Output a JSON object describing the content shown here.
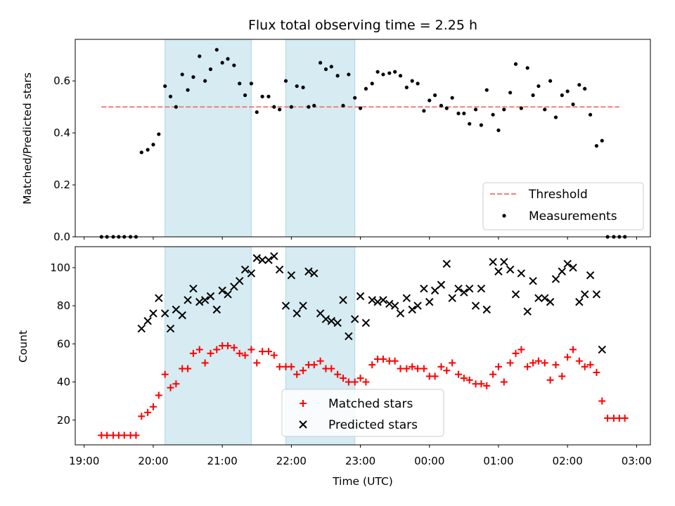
{
  "chart_data": [
    {
      "type": "scatter",
      "title": "Flux total observing time = 2.25 h",
      "xlabel": "",
      "ylabel": "Matched/Predicted stars",
      "ylim": [
        0,
        0.76
      ],
      "y_ticks": [
        0.0,
        0.2,
        0.4,
        0.6
      ],
      "y_tick_labels": [
        "0.0",
        "0.2",
        "0.4",
        "0.6"
      ],
      "xlim_hours": [
        18.87,
        27.2
      ],
      "shaded_intervals_hours": [
        [
          20.17,
          21.42
        ],
        [
          21.92,
          22.92
        ]
      ],
      "shade_color": "#add8e6",
      "threshold": {
        "name": "Threshold",
        "value": 0.5,
        "x_range_hours": [
          19.25,
          26.75
        ],
        "color": "#f08080"
      },
      "legend": [
        {
          "label": "Threshold",
          "marker": "dashed-line",
          "color": "#f08080"
        },
        {
          "label": "Measurements",
          "marker": "dot",
          "color": "#000000"
        }
      ],
      "legend_position": "lower-right",
      "series": [
        {
          "name": "Measurements",
          "marker": "dot",
          "color": "#000000",
          "x_hours": [
            19.25,
            19.33,
            19.42,
            19.5,
            19.58,
            19.67,
            19.75,
            19.83,
            19.92,
            20.0,
            20.08,
            20.17,
            20.25,
            20.33,
            20.42,
            20.5,
            20.58,
            20.67,
            20.75,
            20.83,
            20.92,
            21.0,
            21.08,
            21.17,
            21.25,
            21.33,
            21.42,
            21.5,
            21.58,
            21.67,
            21.75,
            21.83,
            21.92,
            22.0,
            22.08,
            22.17,
            22.25,
            22.33,
            22.42,
            22.5,
            22.58,
            22.67,
            22.75,
            22.83,
            22.92,
            23.0,
            23.08,
            23.17,
            23.25,
            23.33,
            23.42,
            23.5,
            23.58,
            23.67,
            23.75,
            23.83,
            23.92,
            24.0,
            24.08,
            24.17,
            24.25,
            24.33,
            24.42,
            24.5,
            24.58,
            24.67,
            24.75,
            24.83,
            24.92,
            25.0,
            25.08,
            25.17,
            25.25,
            25.33,
            25.42,
            25.5,
            25.58,
            25.67,
            25.75,
            25.83,
            25.92,
            26.0,
            26.08,
            26.17,
            26.25,
            26.33,
            26.42,
            26.5,
            26.58,
            26.67,
            26.75,
            26.83
          ],
          "values": [
            0,
            0,
            0,
            0,
            0,
            0,
            0,
            0.325,
            0.335,
            0.355,
            0.395,
            0.58,
            0.54,
            0.5,
            0.625,
            0.565,
            0.615,
            0.695,
            0.6,
            0.645,
            0.72,
            0.67,
            0.685,
            0.66,
            0.59,
            0.545,
            0.59,
            0.48,
            0.54,
            0.54,
            0.5,
            0.49,
            0.6,
            0.5,
            0.58,
            0.575,
            0.5,
            0.505,
            0.67,
            0.645,
            0.655,
            0.62,
            0.505,
            0.625,
            0.535,
            0.495,
            0.57,
            0.59,
            0.635,
            0.625,
            0.63,
            0.635,
            0.62,
            0.575,
            0.6,
            0.59,
            0.485,
            0.525,
            0.545,
            0.505,
            0.495,
            0.535,
            0.475,
            0.475,
            0.435,
            0.49,
            0.43,
            0.565,
            0.47,
            0.41,
            0.49,
            0.555,
            0.665,
            0.495,
            0.65,
            0.545,
            0.58,
            0.49,
            0.6,
            0.46,
            0.545,
            0.56,
            0.51,
            0.585,
            0.57,
            0.47,
            0.35,
            0.37,
            0,
            0,
            0,
            0
          ]
        }
      ]
    },
    {
      "type": "scatter",
      "title": "",
      "xlabel": "Time (UTC)",
      "ylabel": "Count",
      "ylim": [
        7,
        111
      ],
      "y_ticks": [
        20,
        40,
        60,
        80,
        100
      ],
      "y_tick_labels": [
        "20",
        "40",
        "60",
        "80",
        "100"
      ],
      "xlim_hours": [
        18.87,
        27.2
      ],
      "x_ticks_hours": [
        19,
        20,
        21,
        22,
        23,
        24,
        25,
        26,
        27
      ],
      "x_tick_labels": [
        "19:00",
        "20:00",
        "21:00",
        "22:00",
        "23:00",
        "00:00",
        "01:00",
        "02:00",
        "03:00"
      ],
      "shaded_intervals_hours": [
        [
          20.17,
          21.42
        ],
        [
          21.92,
          22.92
        ]
      ],
      "shade_color": "#add8e6",
      "legend": [
        {
          "label": "Matched stars",
          "marker": "plus",
          "color": "#ff0000"
        },
        {
          "label": "Predicted stars",
          "marker": "x",
          "color": "#000000"
        }
      ],
      "legend_position": "lower-center",
      "series": [
        {
          "name": "Matched stars",
          "marker": "plus",
          "color": "#ff0000",
          "x_hours": [
            19.25,
            19.33,
            19.42,
            19.5,
            19.58,
            19.67,
            19.75,
            19.83,
            19.92,
            20.0,
            20.08,
            20.17,
            20.25,
            20.33,
            20.42,
            20.5,
            20.58,
            20.67,
            20.75,
            20.83,
            20.92,
            21.0,
            21.08,
            21.17,
            21.25,
            21.33,
            21.42,
            21.5,
            21.58,
            21.67,
            21.75,
            21.83,
            21.92,
            22.0,
            22.08,
            22.17,
            22.25,
            22.33,
            22.42,
            22.5,
            22.58,
            22.67,
            22.75,
            22.83,
            22.92,
            23.0,
            23.08,
            23.17,
            23.25,
            23.33,
            23.42,
            23.5,
            23.58,
            23.67,
            23.75,
            23.83,
            23.92,
            24.0,
            24.08,
            24.17,
            24.25,
            24.33,
            24.42,
            24.5,
            24.58,
            24.67,
            24.75,
            24.83,
            24.92,
            25.0,
            25.08,
            25.17,
            25.25,
            25.33,
            25.42,
            25.5,
            25.58,
            25.67,
            25.75,
            25.83,
            25.92,
            26.0,
            26.08,
            26.17,
            26.25,
            26.33,
            26.42,
            26.5,
            26.58,
            26.67,
            26.75,
            26.83
          ],
          "values": [
            12,
            12,
            12,
            12,
            12,
            12,
            12,
            22,
            24,
            27,
            33,
            44,
            37,
            39,
            47,
            47,
            55,
            57,
            50,
            55,
            57,
            59,
            59,
            58,
            55,
            54,
            57,
            50,
            56,
            56,
            54,
            48,
            48,
            48,
            44,
            46,
            49,
            49,
            51,
            47,
            47,
            44,
            42,
            40,
            40,
            42,
            40,
            49,
            52,
            52,
            51,
            51,
            47,
            47,
            48,
            47,
            47,
            43,
            43,
            48,
            46,
            50,
            44,
            42,
            41,
            39,
            39,
            38,
            44,
            48,
            40,
            50,
            55,
            57,
            48,
            50,
            51,
            50,
            41,
            49,
            43,
            53,
            57,
            51,
            48,
            49,
            45,
            30,
            21,
            21,
            21,
            21
          ]
        },
        {
          "name": "Predicted stars",
          "marker": "x",
          "color": "#000000",
          "x_hours": [
            19.83,
            19.92,
            20.0,
            20.08,
            20.17,
            20.25,
            20.33,
            20.42,
            20.5,
            20.58,
            20.67,
            20.75,
            20.83,
            20.92,
            21.0,
            21.08,
            21.17,
            21.25,
            21.33,
            21.42,
            21.5,
            21.58,
            21.67,
            21.75,
            21.83,
            21.92,
            22.0,
            22.08,
            22.17,
            22.25,
            22.33,
            22.42,
            22.5,
            22.58,
            22.67,
            22.75,
            22.83,
            22.92,
            23.0,
            23.08,
            23.17,
            23.25,
            23.33,
            23.42,
            23.5,
            23.58,
            23.67,
            23.75,
            23.83,
            23.92,
            24.0,
            24.08,
            24.17,
            24.25,
            24.33,
            24.42,
            24.5,
            24.58,
            24.67,
            24.75,
            24.83,
            24.92,
            25.0,
            25.08,
            25.17,
            25.25,
            25.33,
            25.42,
            25.5,
            25.58,
            25.67,
            25.75,
            25.83,
            25.92,
            26.0,
            26.08,
            26.17,
            26.25,
            26.33,
            26.42,
            26.5
          ],
          "values": [
            68,
            72,
            76,
            84,
            76,
            68,
            78,
            75,
            83,
            89,
            82,
            83,
            85,
            78,
            88,
            86,
            90,
            93,
            99,
            97,
            105,
            104,
            104,
            106,
            99,
            80,
            96,
            76,
            80,
            98,
            97,
            76,
            73,
            72,
            71,
            83,
            64,
            73,
            85,
            71,
            83,
            82,
            83,
            81,
            80,
            76,
            84,
            78,
            80,
            89,
            82,
            88,
            91,
            102,
            84,
            89,
            87,
            89,
            80,
            89,
            78,
            103,
            98,
            103,
            99,
            86,
            97,
            77,
            93,
            84,
            84,
            82,
            94,
            98,
            102,
            100,
            82,
            86,
            96,
            86,
            57
          ]
        }
      ]
    }
  ]
}
